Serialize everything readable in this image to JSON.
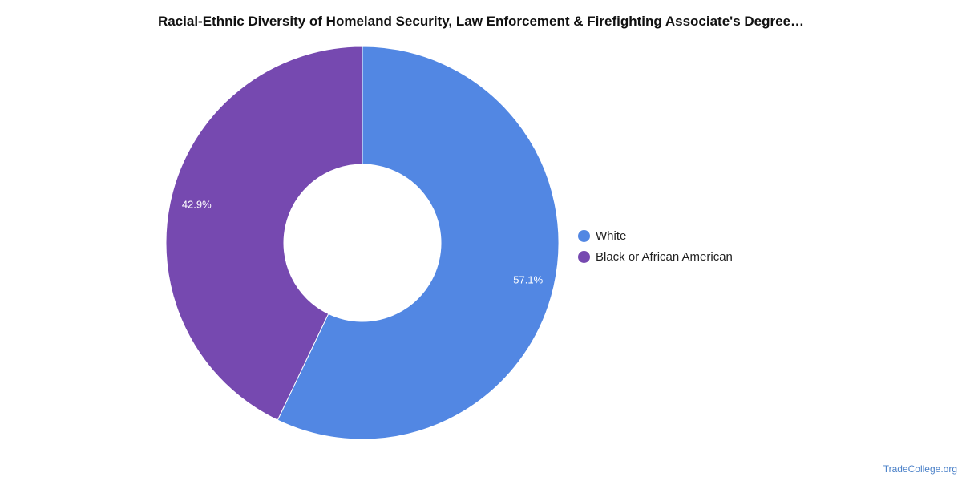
{
  "chart_data": {
    "type": "pie",
    "title": "Racial-Ethnic Diversity of Homeland Security, Law Enforcement & Firefighting Associate's Degree…",
    "categories": [
      "White",
      "Black or African American"
    ],
    "values": [
      57.1,
      42.9
    ],
    "data_labels": [
      "57.1%",
      "42.9%"
    ],
    "colors": [
      "#5287e3",
      "#7649b0"
    ],
    "donut": true,
    "legend": "right"
  },
  "footer": {
    "source": "TradeCollege.org"
  }
}
